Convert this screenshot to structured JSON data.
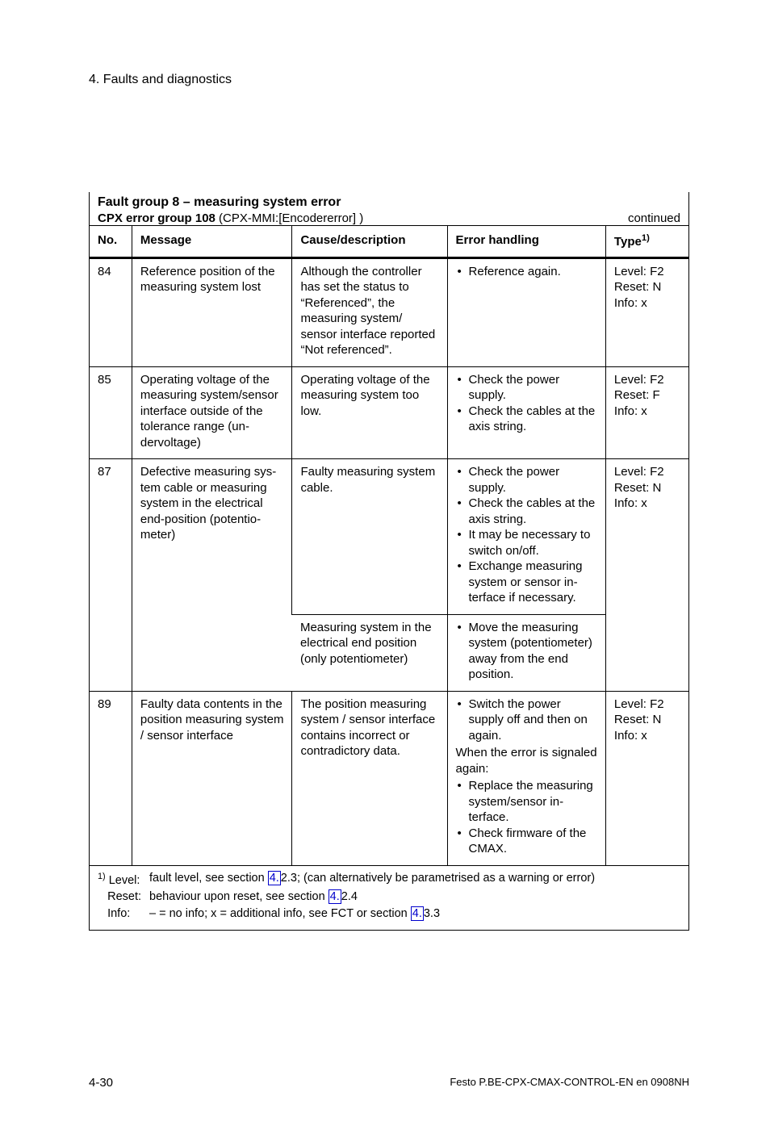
{
  "chapter": "4.   Faults and diagnostics",
  "group": {
    "line1": "Fault group 8 – measuring system error",
    "line2_bold": "CPX error group 108",
    "line2_rest": "  (CPX-MMI:[Encodererror] )",
    "continued": "continued"
  },
  "headers": {
    "no": "No.",
    "message": "Message",
    "cause": "Cause/description",
    "handling": "Error handling",
    "type": "Type",
    "type_ref": "1)"
  },
  "rows": {
    "r84": {
      "no": "84",
      "message": "Reference position of the measuring system lost",
      "cause": "Although the controller has set the status to “Referenced”, the measuring system/ sensor interface re­ported “Not referenced”.",
      "handling": [
        "Reference again."
      ],
      "type": {
        "level": "Level: F2",
        "reset": "Reset: N",
        "info": "Info: x"
      }
    },
    "r85": {
      "no": "85",
      "message": "Operating voltage of the measuring system/sen­sor interface outside of the tolerance range (un­dervoltage)",
      "cause": "Operating voltage of the measuring system too low.",
      "handling": [
        "Check the power supply.",
        "Check the cables at the axis string."
      ],
      "type": {
        "level": "Level: F2",
        "reset": "Reset: F",
        "info": "Info: x"
      }
    },
    "r87": {
      "no": "87",
      "message": "Defective measuring sys­tem cable or measuring system in the electrical end-position (potentio­meter)",
      "cause_a": "Faulty measuring system cable.",
      "handling_a": [
        "Check the power supply.",
        "Check the cables at the axis string.",
        "It may be necessary to switch on/off.",
        "Exchange measuring system or sensor in­terface if necessary."
      ],
      "cause_b": "Measuring system in the electrical end position (only potentiometer)",
      "handling_b": [
        "Move the measuring system (potentio­meter) away from the end position."
      ],
      "type": {
        "level": "Level: F2",
        "reset": "Reset: N",
        "info": "Info: x"
      }
    },
    "r89": {
      "no": "89",
      "message": "Faulty data contents in the position measuring system / sensor interface",
      "cause": "The position measuring system / sensor inter­face contains incorrect or contradictory data.",
      "handling_pre": [
        "Switch the power supply off and then on again."
      ],
      "handling_note": "When the error is sig­naled again:",
      "handling_post": [
        "Replace the measur­ing system/sensor in­terface.",
        "Check firmware of the CMAX."
      ],
      "type": {
        "level": "Level: F2",
        "reset": "Reset: N",
        "info": "Info: x"
      }
    }
  },
  "footnote": {
    "marker": "1)",
    "level_label": "Level:",
    "level_text_a": "fault level, see section ",
    "level_link": "4.",
    "level_text_b": "2.3; (can alternatively be parametrised as a warning or error)",
    "reset_label": "Reset:",
    "reset_text_a": "behaviour upon reset, see section ",
    "reset_link": "4.",
    "reset_text_b": "2.4",
    "info_label": "Info:",
    "info_text_a": "– = no info; x = additional info, see FCT or section ",
    "info_link": "4.",
    "info_text_b": "3.3"
  },
  "footer": {
    "left": "4-30",
    "right": "Festo   P.BE-CPX-CMAX-CONTROL-EN   en 0908NH"
  }
}
